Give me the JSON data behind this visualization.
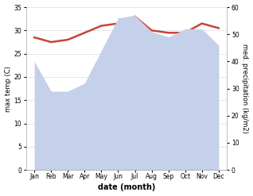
{
  "months": [
    "Jan",
    "Feb",
    "Mar",
    "Apr",
    "May",
    "Jun",
    "Jul",
    "Aug",
    "Sep",
    "Oct",
    "Nov",
    "Dec"
  ],
  "temp": [
    28.5,
    27.5,
    28.0,
    29.5,
    31.0,
    31.5,
    33.0,
    30.0,
    29.5,
    29.5,
    31.5,
    30.5
  ],
  "precip": [
    40,
    29,
    29,
    32,
    44,
    56,
    57,
    51,
    49,
    52,
    52,
    46
  ],
  "temp_color": "#c8443a",
  "precip_color": "#c5d0ea",
  "ylabel_left": "max temp (C)",
  "ylabel_right": "med. precipitation (kg/m2)",
  "xlabel": "date (month)",
  "ylim_left": [
    0,
    35
  ],
  "ylim_right": [
    0,
    60
  ],
  "yticks_left": [
    0,
    5,
    10,
    15,
    20,
    25,
    30,
    35
  ],
  "yticks_right": [
    0,
    10,
    20,
    30,
    40,
    50,
    60
  ],
  "bg_color": "#ffffff",
  "temp_linewidth": 1.8
}
